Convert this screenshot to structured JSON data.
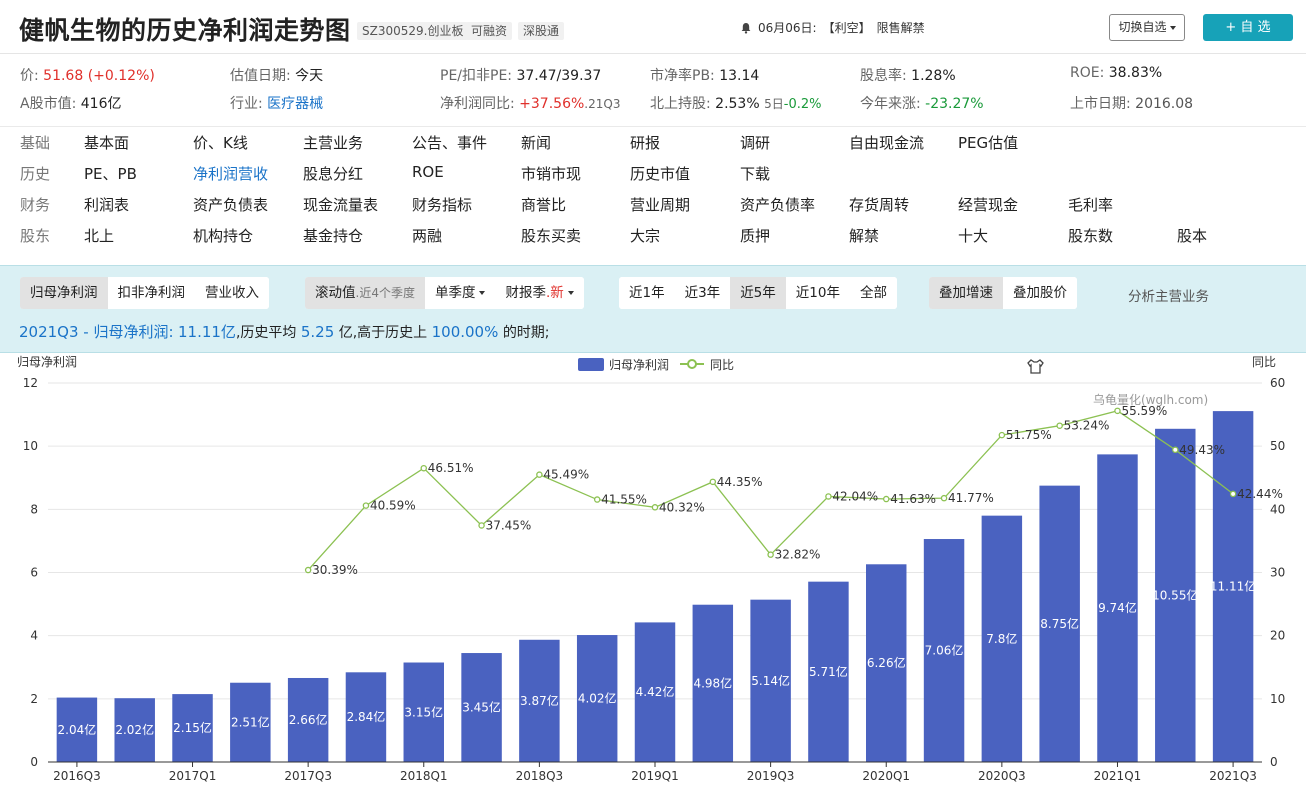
{
  "header": {
    "title": "健帆生物的历史净利润走势图",
    "tags": [
      "SZ300529.创业板",
      "可融资",
      "深股通"
    ],
    "notice_date": "06月06日:",
    "notice_type": "【利空】",
    "notice_text": "限售解禁",
    "switch_label": "切换自选",
    "add_label": "+ 自 选"
  },
  "metrics": {
    "row1": [
      {
        "label": "价:",
        "value": "51.68 (+0.12%)",
        "tone": "red"
      },
      {
        "label": "估值日期:",
        "value": "今天",
        "tone": ""
      },
      {
        "label": "PE/扣非PE:",
        "value": "37.47/39.37",
        "tone": ""
      },
      {
        "label": "市净率PB:",
        "value": "13.14",
        "tone": ""
      },
      {
        "label": "股息率:",
        "value": "1.28%",
        "tone": ""
      },
      {
        "label": "ROE:",
        "value": "38.83%",
        "tone": ""
      }
    ],
    "row2": [
      {
        "label": "A股市值:",
        "value": "416亿",
        "tone": ""
      },
      {
        "label": "行业:",
        "value": "医疗器械",
        "tone": "blue"
      },
      {
        "label": "净利润同比:",
        "value": "+37.56%",
        "tone": "red",
        "suffix": ".21Q3"
      },
      {
        "label": "北上持股:",
        "value": "2.53%",
        "tone": "",
        "suffix": "5日",
        "suffix2": "-0.2%"
      },
      {
        "label": "今年来涨:",
        "value": "-23.27%",
        "tone": "green"
      },
      {
        "label": "上市日期:",
        "value": "2016.08",
        "tone": ""
      }
    ]
  },
  "nav": [
    {
      "category": "基础",
      "items": [
        "基本面",
        "价、K线",
        "主营业务",
        "公告、事件",
        "新闻",
        "研报",
        "调研",
        "自由现金流",
        "PEG估值"
      ]
    },
    {
      "category": "历史",
      "items": [
        "PE、PB",
        "净利润营收",
        "股息分红",
        "ROE",
        "市销市现",
        "历史市值",
        "下载"
      ]
    },
    {
      "category": "财务",
      "items": [
        "利润表",
        "资产负债表",
        "现金流量表",
        "财务指标",
        "商誉比",
        "营业周期",
        "资产负债率",
        "存货周转",
        "经营现金",
        "毛利率"
      ]
    },
    {
      "category": "股东",
      "items": [
        "北上",
        "机构持仓",
        "基金持仓",
        "两融",
        "股东买卖",
        "大宗",
        "质押",
        "解禁",
        "十大",
        "股东数",
        "股本"
      ]
    }
  ],
  "toolbar": {
    "metric_tabs": [
      "归母净利润",
      "扣非净利润",
      "营业收入"
    ],
    "rolling_label": "滚动值",
    "rolling_sub": ".近4个季度",
    "single_quarter": "单季度",
    "report_label": "财报季",
    "report_new": ".新",
    "ranges": [
      "近1年",
      "近3年",
      "近5年",
      "近10年",
      "全部"
    ],
    "overlay": [
      "叠加增速",
      "叠加股价"
    ],
    "analysis": "分析主营业务"
  },
  "summary": {
    "head": "2021Q3 - 归母净利润:",
    "value": "11.11亿",
    "mid": ",历史平均",
    "avg": "5.25",
    "mid2": "亿,高于历史上",
    "pct": "100.00%",
    "tail": "的时期;"
  },
  "chart_data": {
    "type": "bar",
    "ylabel": "归母净利润",
    "y2label": "同比",
    "watermark": "乌龟量化(wglh.com)",
    "legend": [
      "归母净利润",
      "同比"
    ],
    "ylim": [
      0,
      12
    ],
    "y2lim": [
      0,
      60
    ],
    "yticks": [
      0,
      2,
      4,
      6,
      8,
      10,
      12
    ],
    "y2ticks": [
      0,
      10,
      20,
      30,
      40,
      50,
      60
    ],
    "categories": [
      "2016Q3",
      "2016Q4",
      "2017Q1",
      "2017Q2",
      "2017Q3",
      "2017Q4",
      "2018Q1",
      "2018Q2",
      "2018Q3",
      "2018Q4",
      "2019Q1",
      "2019Q2",
      "2019Q3",
      "2019Q4",
      "2020Q1",
      "2020Q2",
      "2020Q3",
      "2020Q4",
      "2021Q1",
      "2021Q2",
      "2021Q3"
    ],
    "xtick_labels": [
      "2016Q3",
      "2017Q1",
      "2017Q3",
      "2018Q1",
      "2018Q3",
      "2019Q1",
      "2019Q3",
      "2020Q1",
      "2020Q3",
      "2021Q1",
      "2021Q3"
    ],
    "series": [
      {
        "name": "归母净利润",
        "values": [
          2.04,
          2.02,
          2.15,
          2.51,
          2.66,
          2.84,
          3.15,
          3.45,
          3.87,
          4.02,
          4.42,
          4.98,
          5.14,
          5.71,
          6.26,
          7.06,
          7.8,
          8.75,
          9.74,
          10.55,
          11.11
        ],
        "labels": [
          "2.04亿",
          "2.02亿",
          "2.15亿",
          "2.51亿",
          "2.66亿",
          "2.84亿",
          "3.15亿",
          "3.45亿",
          "3.87亿",
          "4.02亿",
          "4.42亿",
          "4.98亿",
          "5.14亿",
          "5.71亿",
          "6.26亿",
          "7.06亿",
          "7.8亿",
          "8.75亿",
          "9.74亿",
          "10.55亿",
          "11.11亿"
        ]
      },
      {
        "name": "同比",
        "values": [
          null,
          null,
          null,
          null,
          30.39,
          40.59,
          46.51,
          37.45,
          45.49,
          41.55,
          40.32,
          44.35,
          32.82,
          42.04,
          41.63,
          41.77,
          51.75,
          53.24,
          55.59,
          49.43,
          42.44
        ],
        "labels": [
          null,
          null,
          null,
          null,
          "30.39%",
          "40.59%",
          "46.51%",
          "37.45%",
          "45.49%",
          "41.55%",
          "40.32%",
          "44.35%",
          "32.82%",
          "42.04%",
          "41.63%",
          "41.77%",
          "51.75%",
          "53.24%",
          "55.59%",
          "49.43%",
          "42.44%"
        ]
      }
    ],
    "colors": {
      "bar": "#4a62c0",
      "line": "#8cc152",
      "grid": "#e6e6e6"
    }
  }
}
